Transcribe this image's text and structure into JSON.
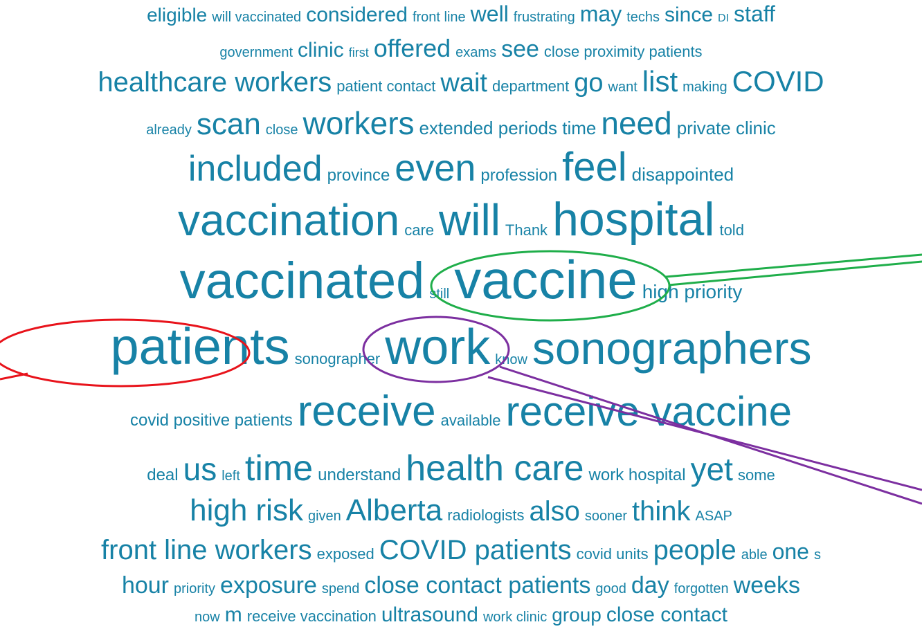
{
  "rows": [
    [
      "eligible",
      "will vaccinated",
      "considered",
      "front line",
      "well",
      "frustrating",
      "may",
      "techs",
      "since",
      "DI",
      "staff"
    ],
    [
      "government",
      "clinic",
      "first",
      "offered",
      "exams",
      "see",
      "close proximity patients"
    ],
    [
      "healthcare workers",
      "patient contact",
      "wait",
      "department",
      "go",
      "want",
      "list",
      "making",
      "COVID"
    ],
    [
      "already",
      "scan",
      "close",
      "workers",
      "extended periods time",
      "need",
      "private clinic"
    ],
    [
      "included",
      "province",
      "even",
      "profession",
      "feel",
      "disappointed"
    ],
    [
      "vaccination",
      "care",
      "will",
      "Thank",
      "hospital",
      "told"
    ],
    [
      "vaccinated",
      "still",
      "vaccine",
      "high priority"
    ],
    [
      "patients",
      "sonographer",
      "work",
      "know",
      "sonographers"
    ],
    [
      "covid positive patients",
      "receive",
      "available",
      "receive vaccine"
    ],
    [
      "deal",
      "us",
      "left",
      "time",
      "understand",
      "health care",
      "work hospital",
      "yet",
      "some"
    ],
    [
      "high risk",
      "given",
      "Alberta",
      "radiologists",
      "also",
      "sooner",
      "think",
      "ASAP"
    ],
    [
      "front line workers",
      "exposed",
      "COVID patients",
      "covid units",
      "people",
      "able",
      "one",
      "s"
    ],
    [
      "hour",
      "priority",
      "exposure",
      "spend",
      "close contact patients",
      "good",
      "day",
      "forgotten",
      "weeks"
    ],
    [
      "now",
      "m",
      "receive vaccination",
      "ultrasound",
      "work clinic",
      "group",
      "close contact"
    ]
  ]
}
